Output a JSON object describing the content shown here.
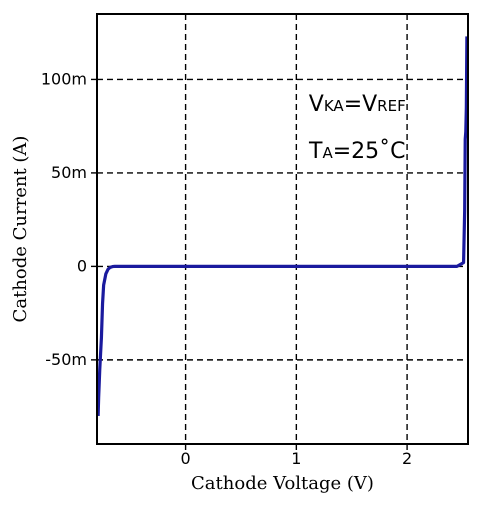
{
  "chart_data": {
    "type": "line",
    "title": "",
    "xlabel": "Cathode Voltage (V)",
    "ylabel": "Cathode Current (A)",
    "xlim": [
      -0.8,
      2.55
    ],
    "ylim": [
      -95,
      135
    ],
    "x_ticks": [
      {
        "value": 0,
        "label": "0"
      },
      {
        "value": 1,
        "label": "1"
      },
      {
        "value": 2,
        "label": "2"
      }
    ],
    "y_ticks": [
      {
        "value": 100,
        "label": "100m"
      },
      {
        "value": 50,
        "label": "50m"
      },
      {
        "value": 0,
        "label": "0"
      },
      {
        "value": -50,
        "label": "-50m"
      }
    ],
    "grid": true,
    "grid_style": "dashed",
    "series_color": "#1a1a9e",
    "series": [
      {
        "x": [
          -0.79,
          -0.785,
          -0.775,
          -0.76,
          -0.75,
          -0.74,
          -0.72,
          -0.7,
          -0.68,
          -0.66,
          -0.64,
          -0.62,
          -0.6,
          0.0,
          1.0,
          2.0,
          2.45,
          2.51,
          2.52,
          2.525,
          2.53,
          2.535,
          2.54
        ],
        "y": [
          -80,
          -70,
          -55,
          -38,
          -20,
          -10,
          -4,
          -1.5,
          -0.5,
          -0.1,
          0,
          0,
          0,
          0,
          0,
          0,
          0,
          2,
          30,
          68,
          72,
          85,
          123
        ]
      }
    ],
    "annotations": [
      {
        "main": "V",
        "sub": "KA",
        "main2": "=V",
        "sub2": "REF",
        "x": 1.55,
        "y": 83
      },
      {
        "main": "T",
        "sub": "A",
        "main2": "=25˚C",
        "x": 1.55,
        "y": 58
      }
    ]
  }
}
